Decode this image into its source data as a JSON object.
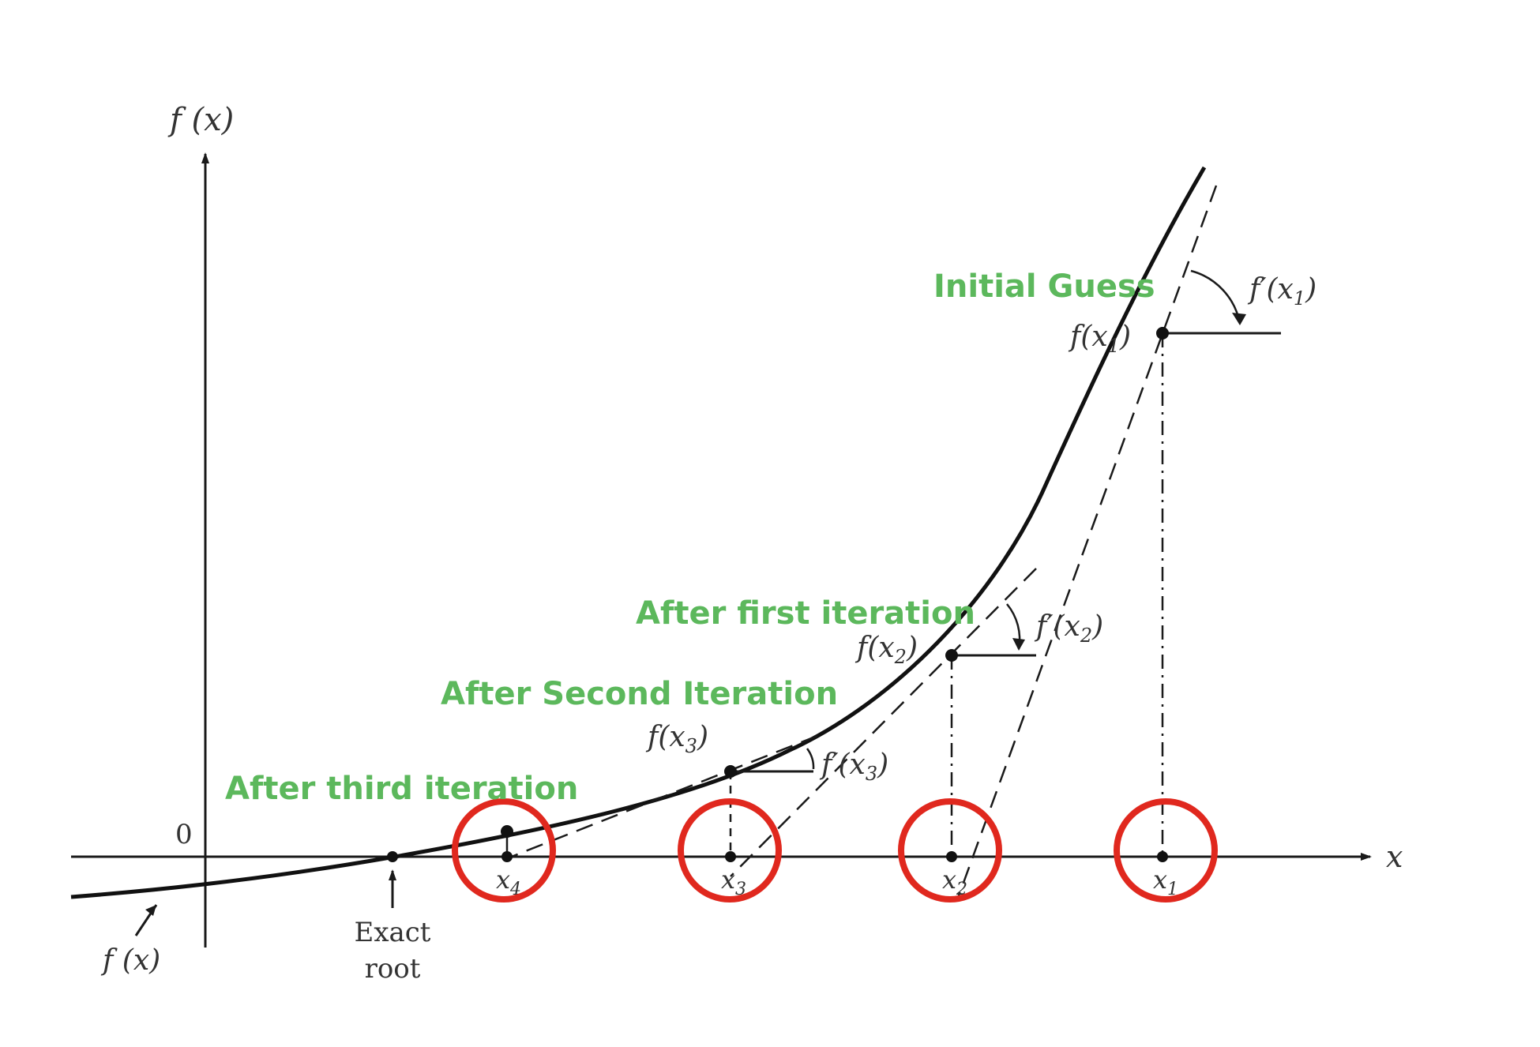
{
  "axes": {
    "y_label": "f (x)",
    "x_label": "x",
    "origin_label": "0"
  },
  "curve": {
    "label": "f (x)"
  },
  "root": {
    "label_line1": "Exact",
    "label_line2": "root"
  },
  "points": {
    "x1": {
      "label": "x",
      "sub": "1",
      "f_label": "f(x",
      "f_sub": "1",
      "slope_label": "f′(x",
      "slope_sub": "1"
    },
    "x2": {
      "label": "x",
      "sub": "2",
      "f_label": "f(x",
      "f_sub": "2",
      "slope_label": "f′(x",
      "slope_sub": "2"
    },
    "x3": {
      "label": "x",
      "sub": "3",
      "f_label": "f(x",
      "f_sub": "3",
      "slope_label": "f′(x",
      "slope_sub": "3"
    },
    "x4": {
      "label": "x",
      "sub": "4"
    }
  },
  "callouts": {
    "initial": "Initial Guess",
    "first": "After first iteration",
    "second": "After Second Iteration",
    "third": "After third iteration"
  },
  "colors": {
    "callout_text": "#5cb85c",
    "highlight_circle": "#e0281e",
    "line": "#1a1a1a"
  }
}
